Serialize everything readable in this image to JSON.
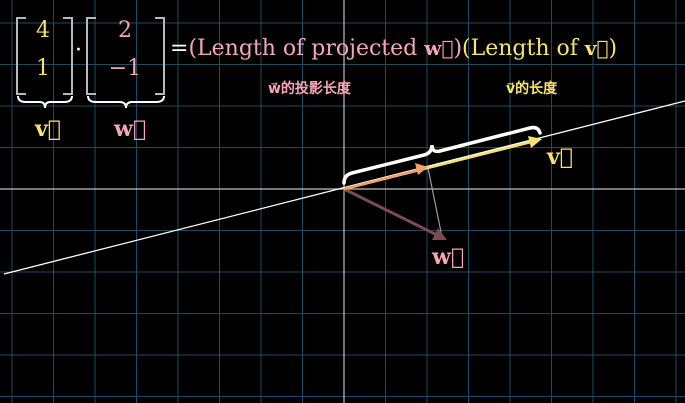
{
  "equation": {
    "vector_v": [
      "4",
      "1"
    ],
    "vector_w": [
      "2",
      "−1"
    ],
    "dot": "·",
    "equals": "=",
    "open_paren_1": "(Length of projected ",
    "w_symbol": "w⃗",
    "close_paren_1": ")",
    "open_paren_2": "(Length of ",
    "v_symbol": "v⃗",
    "close_paren_2": ")"
  },
  "brace_labels": {
    "v": "v⃗",
    "w": "w⃗"
  },
  "captions": {
    "w_proj_length": "w⃗的投影长度",
    "v_length": "v⃗的长度"
  },
  "plot_labels": {
    "v": "v⃗",
    "w": "w⃗"
  },
  "colors": {
    "background": "#000000",
    "grid": "#1f4a63",
    "axis": "#bfbfbf",
    "v_color": "#f6e36a",
    "w_color": "#f4a6b8",
    "w_arrow": "#7a4a55",
    "projection": "#f4a06a",
    "line": "#ffffff"
  }
}
